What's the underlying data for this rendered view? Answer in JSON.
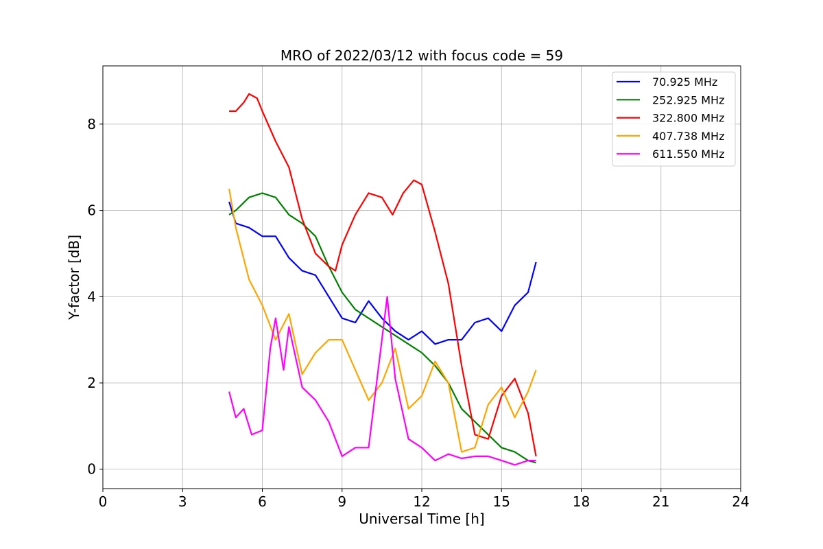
{
  "chart_data": {
    "type": "line",
    "title": "MRO of 2022/03/12 with focus code = 59",
    "xlabel": "Universal Time [h]",
    "ylabel": "Y-factor [dB]",
    "xlim": [
      0,
      24
    ],
    "ylim": [
      -0.45,
      9.35
    ],
    "xticks": [
      0,
      3,
      6,
      9,
      12,
      15,
      18,
      21,
      24
    ],
    "yticks": [
      0,
      2,
      4,
      6,
      8
    ],
    "grid": true,
    "legend_position": "top-right",
    "series": [
      {
        "name": " 70.925 MHz",
        "color": "#0000ff",
        "x": [
          4.75,
          5.0,
          5.5,
          6.0,
          6.5,
          7.0,
          7.5,
          8.0,
          8.5,
          9.0,
          9.5,
          10.0,
          10.5,
          11.0,
          11.5,
          12.0,
          12.5,
          13.0,
          13.5,
          14.0,
          14.5,
          15.0,
          15.5,
          16.0,
          16.3
        ],
        "values": [
          6.2,
          5.7,
          5.6,
          5.4,
          5.4,
          4.9,
          4.6,
          4.5,
          4.0,
          3.5,
          3.4,
          3.9,
          3.5,
          3.2,
          3.0,
          3.2,
          2.9,
          3.0,
          3.0,
          3.4,
          3.5,
          3.2,
          3.8,
          4.1,
          4.8
        ]
      },
      {
        "name": "252.925 MHz",
        "color": "#008000",
        "x": [
          4.75,
          5.0,
          5.5,
          6.0,
          6.5,
          7.0,
          7.5,
          8.0,
          8.5,
          9.0,
          9.5,
          10.0,
          10.5,
          11.0,
          11.5,
          12.0,
          12.5,
          13.0,
          13.5,
          14.0,
          14.5,
          15.0,
          15.5,
          16.0,
          16.3
        ],
        "values": [
          5.9,
          6.0,
          6.3,
          6.4,
          6.3,
          5.9,
          5.7,
          5.4,
          4.7,
          4.1,
          3.7,
          3.5,
          3.3,
          3.1,
          2.9,
          2.7,
          2.4,
          2.0,
          1.4,
          1.1,
          0.8,
          0.5,
          0.4,
          0.2,
          0.15
        ]
      },
      {
        "name": "322.800 MHz",
        "color": "#ff0000",
        "x": [
          4.75,
          5.0,
          5.3,
          5.5,
          5.8,
          6.0,
          6.5,
          7.0,
          7.5,
          8.0,
          8.5,
          8.75,
          9.0,
          9.5,
          10.0,
          10.5,
          10.9,
          11.3,
          11.7,
          12.0,
          12.5,
          13.0,
          13.5,
          14.0,
          14.5,
          15.0,
          15.5,
          16.0,
          16.3
        ],
        "values": [
          8.3,
          8.3,
          8.5,
          8.7,
          8.6,
          8.3,
          7.6,
          7.0,
          5.8,
          5.0,
          4.7,
          4.6,
          5.2,
          5.9,
          6.4,
          6.3,
          5.9,
          6.4,
          6.7,
          6.6,
          5.5,
          4.3,
          2.4,
          0.8,
          0.7,
          1.7,
          2.1,
          1.3,
          0.3
        ]
      },
      {
        "name": "407.738 MHz",
        "color": "#ffa500",
        "x": [
          4.75,
          5.0,
          5.5,
          6.0,
          6.5,
          7.0,
          7.5,
          8.0,
          8.5,
          9.0,
          9.5,
          10.0,
          10.5,
          11.0,
          11.5,
          12.0,
          12.5,
          13.0,
          13.5,
          14.0,
          14.5,
          15.0,
          15.5,
          16.0,
          16.3
        ],
        "values": [
          6.5,
          5.6,
          4.4,
          3.8,
          3.0,
          3.6,
          2.2,
          2.7,
          3.0,
          3.0,
          2.3,
          1.6,
          2.0,
          2.8,
          1.4,
          1.7,
          2.5,
          2.0,
          0.4,
          0.5,
          1.5,
          1.9,
          1.2,
          1.8,
          2.3
        ]
      },
      {
        "name": "611.550 MHz",
        "color": "#ff00ff",
        "x": [
          4.75,
          5.0,
          5.3,
          5.6,
          6.0,
          6.3,
          6.5,
          6.8,
          7.0,
          7.5,
          8.0,
          8.5,
          9.0,
          9.5,
          10.0,
          10.3,
          10.7,
          11.0,
          11.5,
          12.0,
          12.5,
          13.0,
          13.5,
          14.0,
          14.5,
          15.0,
          15.5,
          16.0,
          16.3
        ],
        "values": [
          1.8,
          1.2,
          1.4,
          0.8,
          0.9,
          2.8,
          3.5,
          2.3,
          3.3,
          1.9,
          1.6,
          1.1,
          0.3,
          0.5,
          0.5,
          2.0,
          4.0,
          2.1,
          0.7,
          0.5,
          0.2,
          0.35,
          0.25,
          0.3,
          0.3,
          0.2,
          0.1,
          0.2,
          0.2
        ]
      }
    ]
  }
}
